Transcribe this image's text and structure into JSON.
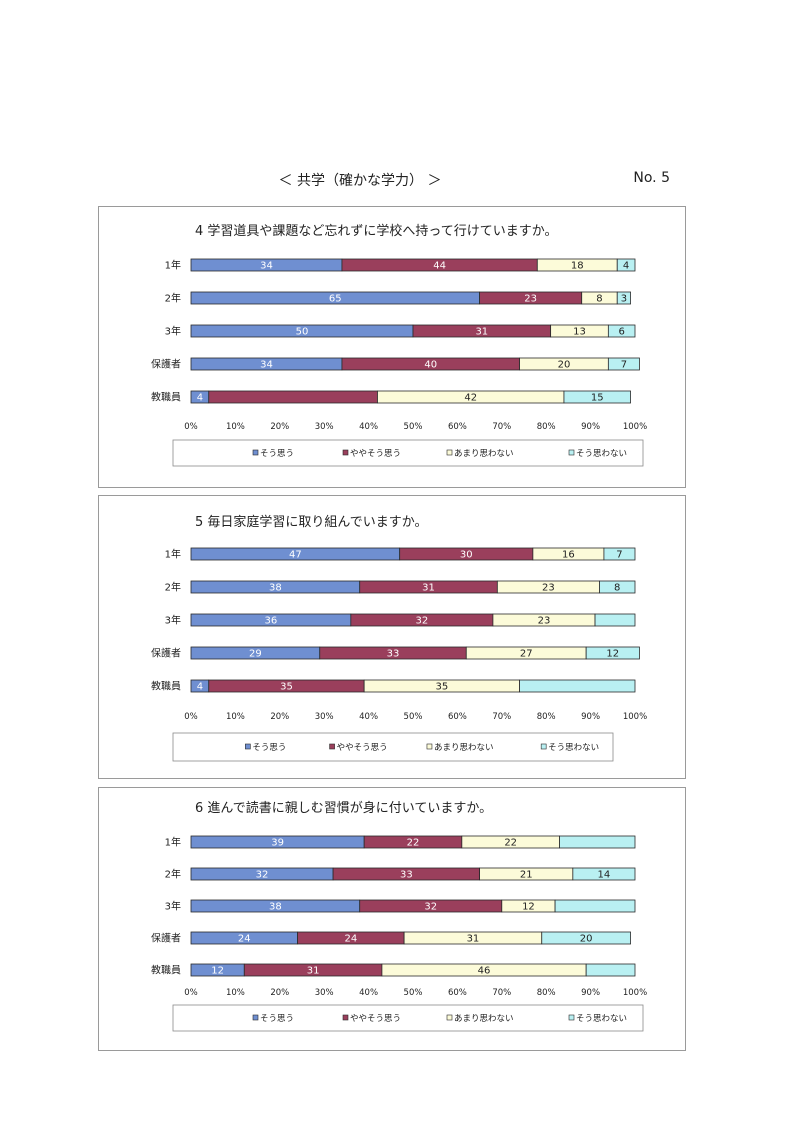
{
  "header": {
    "title": "＜ 共学（確かな学力） ＞",
    "page_number": "No. 5"
  },
  "colors": {
    "c1": "#6f8fd1",
    "c2": "#9a3f5c",
    "c3": "#fcfbd9",
    "c4": "#b9f0f2",
    "stroke": "#2a2a2a"
  },
  "chart_data": [
    {
      "type": "bar",
      "orientation": "horizontal",
      "stacked": true,
      "title": "4 学習道具や課題など忘れずに学校へ持って行けていますか。",
      "categories": [
        "1年",
        "2年",
        "3年",
        "保護者",
        "教職員"
      ],
      "series": [
        {
          "name": "そう思う",
          "values": [
            34,
            65,
            50,
            34,
            4
          ],
          "labels": [
            "34",
            "65",
            "50",
            "34",
            "4"
          ]
        },
        {
          "name": "ややそう思う",
          "values": [
            44,
            23,
            31,
            40,
            38
          ],
          "labels": [
            "44",
            "23",
            "31",
            "40",
            ""
          ]
        },
        {
          "name": "あまり思わない",
          "values": [
            18,
            8,
            13,
            20,
            42
          ],
          "labels": [
            "18",
            "8",
            "13",
            "20",
            "42"
          ]
        },
        {
          "name": "そう思わない",
          "values": [
            4,
            3,
            6,
            7,
            15
          ],
          "labels": [
            "4",
            "3",
            "6",
            "7",
            "15"
          ]
        }
      ],
      "xticks": [
        "0%",
        "10%",
        "20%",
        "30%",
        "40%",
        "50%",
        "60%",
        "70%",
        "80%",
        "90%",
        "100%"
      ],
      "xlim": [
        0,
        100
      ],
      "grid": false,
      "legend": "bottom"
    },
    {
      "type": "bar",
      "orientation": "horizontal",
      "stacked": true,
      "title": "5 毎日家庭学習に取り組んでいますか。",
      "categories": [
        "1年",
        "2年",
        "3年",
        "保護者",
        "教職員"
      ],
      "series": [
        {
          "name": "そう思う",
          "values": [
            47,
            38,
            36,
            29,
            4
          ],
          "labels": [
            "47",
            "38",
            "36",
            "29",
            "4"
          ]
        },
        {
          "name": "ややそう思う",
          "values": [
            30,
            31,
            32,
            33,
            35
          ],
          "labels": [
            "30",
            "31",
            "32",
            "33",
            "35"
          ]
        },
        {
          "name": "あまり思わない",
          "values": [
            16,
            23,
            23,
            27,
            35
          ],
          "labels": [
            "16",
            "23",
            "23",
            "27",
            "35"
          ]
        },
        {
          "name": "そう思わない",
          "values": [
            7,
            8,
            9,
            12,
            26
          ],
          "labels": [
            "7",
            "8",
            "",
            "12",
            ""
          ]
        }
      ],
      "xticks": [
        "0%",
        "10%",
        "20%",
        "30%",
        "40%",
        "50%",
        "60%",
        "70%",
        "80%",
        "90%",
        "100%"
      ],
      "xlim": [
        0,
        100
      ],
      "grid": false,
      "legend": "bottom"
    },
    {
      "type": "bar",
      "orientation": "horizontal",
      "stacked": true,
      "title": "6 進んで読書に親しむ習慣が身に付いていますか。",
      "categories": [
        "1年",
        "2年",
        "3年",
        "保護者",
        "教職員"
      ],
      "series": [
        {
          "name": "そう思う",
          "values": [
            39,
            32,
            38,
            24,
            12
          ],
          "labels": [
            "39",
            "32",
            "38",
            "24",
            "12"
          ]
        },
        {
          "name": "ややそう思う",
          "values": [
            22,
            33,
            32,
            24,
            31
          ],
          "labels": [
            "22",
            "33",
            "32",
            "24",
            "31"
          ]
        },
        {
          "name": "あまり思わない",
          "values": [
            22,
            21,
            12,
            31,
            46
          ],
          "labels": [
            "22",
            "21",
            "12",
            "31",
            "46"
          ]
        },
        {
          "name": "そう思わない",
          "values": [
            17,
            14,
            18,
            20,
            11
          ],
          "labels": [
            "",
            "14",
            "",
            "20",
            ""
          ]
        }
      ],
      "xticks": [
        "0%",
        "10%",
        "20%",
        "30%",
        "40%",
        "50%",
        "60%",
        "70%",
        "80%",
        "90%",
        "100%"
      ],
      "xlim": [
        0,
        100
      ],
      "grid": false,
      "legend": "bottom"
    }
  ]
}
